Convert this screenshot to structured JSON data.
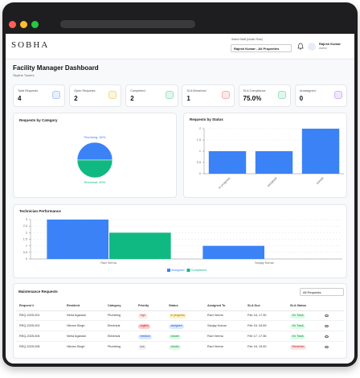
{
  "header": {
    "brand": "SOBHA",
    "staff_label": "Select Staff (Under Role)",
    "staff_value": "Rajesh Kumar - All Properties",
    "user_name": "Rajesh Kumar",
    "user_role": "Admin"
  },
  "page": {
    "title": "Facility Manager Dashboard",
    "subtitle": "Skyline Towers"
  },
  "stats": [
    {
      "label": "Total Requests",
      "value": 4
    },
    {
      "label": "Open Requests",
      "value": 2
    },
    {
      "label": "Completed",
      "value": 2
    },
    {
      "label": "SLA Breached",
      "value": 1
    },
    {
      "label": "SLA Compliance",
      "value": 75,
      "value_label": "75.0%"
    },
    {
      "label": "Unassigned",
      "value": 0
    }
  ],
  "chart_data": [
    {
      "type": "pie",
      "title": "Requests by Category",
      "values": [
        50,
        50
      ],
      "value_labels": [
        "Plumbing: 50%",
        "Electrical: 50%"
      ],
      "colors": [
        "#3b82f6",
        "#10b981"
      ]
    },
    {
      "type": "bar",
      "title": "Requests by Status",
      "categories": [
        "In progress",
        "assigned",
        "closed"
      ],
      "values": [
        1,
        1,
        2
      ],
      "color": "#3b82f6",
      "ylim": [
        0,
        2
      ],
      "yticks": [
        0,
        0.5,
        1,
        1.5,
        2
      ],
      "grid": true
    },
    {
      "type": "grouped_bar",
      "title": "Technician Performance",
      "categories": [
        "Ravi Verma",
        "Sanjay Kumar"
      ],
      "series": [
        {
          "name": "Assigned",
          "color": "#3b82f6",
          "values": [
            3,
            1
          ]
        },
        {
          "name": "Completed",
          "color": "#10b981",
          "values": [
            2,
            0
          ]
        }
      ],
      "ylim": [
        0,
        3
      ],
      "yticks": [
        0,
        0.5,
        1,
        1.5,
        2,
        2.5,
        3
      ],
      "grid": true,
      "legend": "bottom"
    }
  ],
  "table": {
    "title": "Maintenance Requests",
    "filter": "All Requests",
    "columns": [
      "Request #",
      "Resident",
      "Category",
      "Priority",
      "Status",
      "Assigned To",
      "SLA Due",
      "SLA Status"
    ],
    "rows": [
      [
        "REQ-2025-001",
        "Neha Agarwal",
        "Plumbing",
        "high",
        "in progress",
        "Ravi Verma",
        "Feb 16, 17:30",
        "On Track"
      ],
      [
        "REQ-2025-002",
        "Vikram Singh",
        "Electrical",
        "urgent",
        "assigned",
        "Sanjay Kumar",
        "Feb 16, 04:59",
        "On Track"
      ],
      [
        "REQ-2025-004",
        "Neha Agarwal",
        "Electrical",
        "medium",
        "closed",
        "Ravi Verma",
        "Feb 17, 17:36",
        "On Track"
      ],
      [
        "REQ-2025-006",
        "Vikram Singh",
        "Plumbing",
        "low",
        "closed",
        "Ravi Verma",
        "Feb 16, 19:00",
        "Breached"
      ]
    ]
  }
}
